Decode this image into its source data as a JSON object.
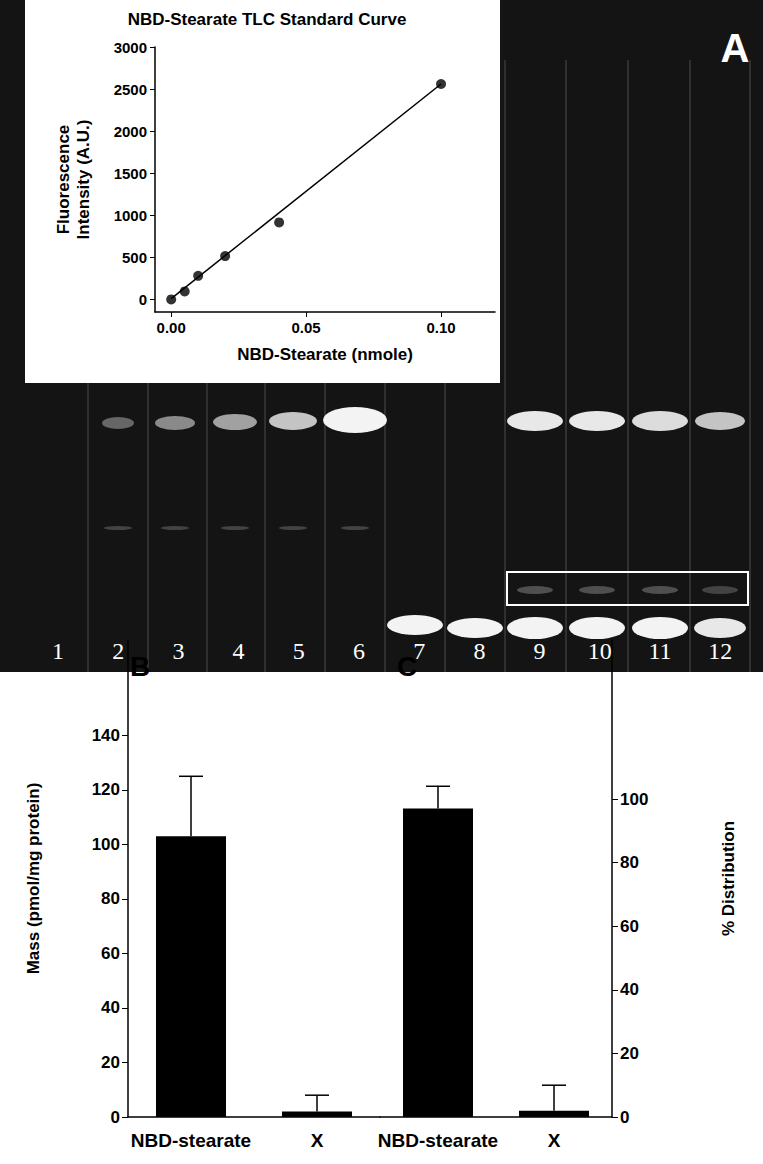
{
  "panels": [
    "A",
    "B",
    "C"
  ],
  "tlc_lanes": [
    "1",
    "2",
    "3",
    "4",
    "5",
    "6",
    "7",
    "8",
    "9",
    "10",
    "11",
    "12"
  ],
  "chart_data": [
    {
      "type": "scatter",
      "title": "NBD-Stearate TLC Standard Curve",
      "xlabel": "NBD-Stearate (nmole)",
      "ylabel": "Fluorescence\nIntensity (A.U.)",
      "series": [
        {
          "type": "scatter",
          "marker": "circle",
          "color": "#000000",
          "x": [
            0,
            0.005,
            0.01,
            0.02,
            0.04,
            0.1
          ],
          "values": [
            0,
            95,
            280,
            515,
            915,
            2560
          ]
        },
        {
          "type": "line",
          "line_style": "solid",
          "color": "#000000",
          "x": [
            0,
            0.1
          ],
          "values": [
            10,
            2560
          ]
        }
      ],
      "xlim": [
        -0.006,
        0.12
      ],
      "xticks": [
        {
          "value": 0,
          "label": "0.00"
        },
        {
          "value": 0.05,
          "label": "0.05"
        },
        {
          "value": 0.1,
          "label": "0.10"
        }
      ],
      "ylim": [
        -150,
        3000
      ],
      "yticks": [
        0,
        500,
        1000,
        1500,
        2000,
        2500,
        3000
      ],
      "grid": false
    },
    {
      "type": "bar",
      "ylabel": "Mass (pmol/mg protein)",
      "categories": [
        "NBD-stearate",
        "X"
      ],
      "series": [
        {
          "color": "#000000",
          "values": [
            103,
            2
          ],
          "errors": [
            22,
            6
          ]
        }
      ],
      "ylim": [
        0,
        175
      ],
      "yticks": [
        0,
        20,
        40,
        60,
        80,
        100,
        120,
        140
      ],
      "grid": false
    },
    {
      "type": "bar",
      "y2label": "% Distribution",
      "categories": [
        "NBD-stearate",
        "X"
      ],
      "series": [
        {
          "color": "#000000",
          "values": [
            97,
            2
          ],
          "errors": [
            7,
            8
          ],
          "axis": "y2"
        }
      ],
      "y2lim": [
        0,
        150
      ],
      "y2ticks": [
        0,
        20,
        40,
        60,
        80,
        100
      ],
      "grid": false
    }
  ]
}
